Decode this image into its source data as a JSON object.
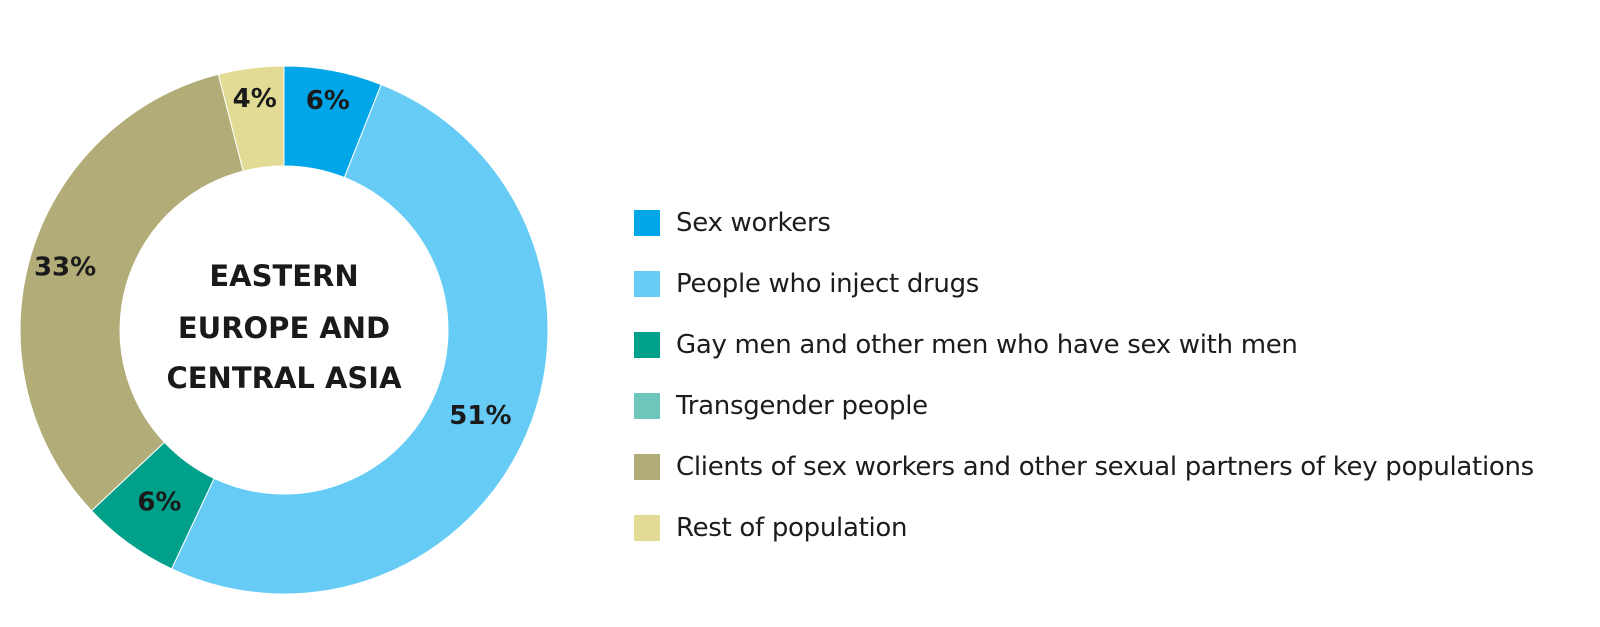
{
  "chart_data": {
    "type": "pie",
    "variant": "donut",
    "center_label": [
      "EASTERN",
      "EUROPE AND",
      "CENTRAL ASIA"
    ],
    "slices": [
      {
        "name": "Sex workers",
        "value": 6,
        "label": "6%",
        "color": "#00a6e8"
      },
      {
        "name": "People who inject drugs",
        "value": 51,
        "label": "51%",
        "color": "#66ccf5"
      },
      {
        "name": "Gay men and other men who have sex with men",
        "value": 6,
        "label": "6%",
        "color": "#00a08a"
      },
      {
        "name": "Transgender people",
        "value": 0,
        "label": "",
        "color": "#6ec6bb"
      },
      {
        "name": "Clients of sex workers and other sexual partners of key populations",
        "value": 33,
        "label": "33%",
        "color": "#b2ad78"
      },
      {
        "name": "Rest of population",
        "value": 4,
        "label": "4%",
        "color": "#e2db96"
      }
    ],
    "legend_position": "right"
  }
}
